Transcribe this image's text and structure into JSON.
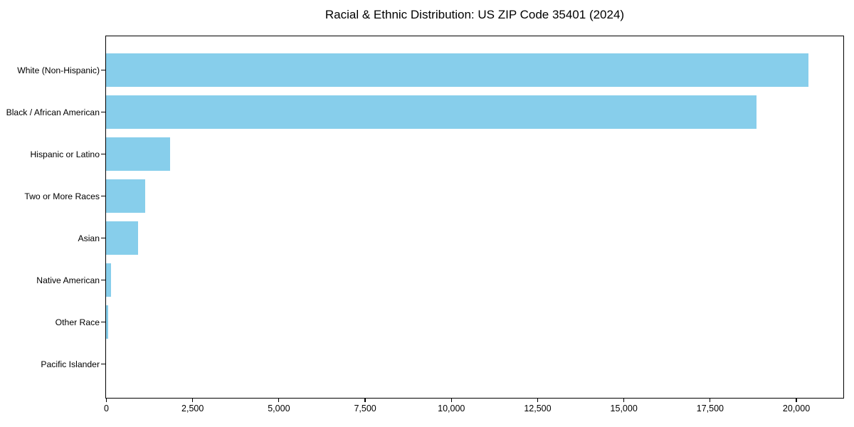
{
  "chart_data": {
    "type": "bar",
    "orientation": "horizontal",
    "title": "Racial & Ethnic Distribution: US ZIP Code 35401 (2024)",
    "categories": [
      "White (Non-Hispanic)",
      "Black / African American",
      "Hispanic or Latino",
      "Two or More Races",
      "Asian",
      "Native American",
      "Other Race",
      "Pacific Islander"
    ],
    "values": [
      20350,
      18850,
      1855,
      1135,
      930,
      145,
      60,
      0
    ],
    "bar_color": "#87CEEB",
    "background_color": "#ffffff",
    "frame_color": "#000000",
    "xlim": [
      0,
      21350
    ],
    "x_tick_values": [
      0,
      2500,
      5000,
      7500,
      10000,
      12500,
      15000,
      17500,
      20000
    ],
    "x_tick_labels": [
      "0",
      "2,500",
      "5,000",
      "7,500",
      "10,000",
      "12,500",
      "15,000",
      "17,500",
      "20,000"
    ],
    "xlabel": "",
    "ylabel": "",
    "grid": false,
    "legend": null
  }
}
